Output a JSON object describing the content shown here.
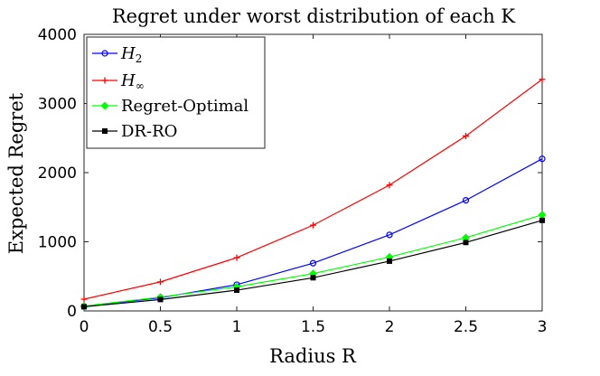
{
  "chart_data": {
    "type": "line",
    "title": "Regret under worst distribution of each K",
    "xlabel": "Radius R",
    "ylabel": "Expected Regret",
    "xlim": [
      0,
      3
    ],
    "ylim": [
      0,
      4000
    ],
    "xticks": [
      0,
      0.5,
      1,
      1.5,
      2,
      2.5,
      3
    ],
    "xtick_labels": [
      "0",
      "0.5",
      "1",
      "1.5",
      "2",
      "2.5",
      "3"
    ],
    "yticks": [
      0,
      1000,
      2000,
      3000,
      4000
    ],
    "ytick_labels": [
      "0",
      "1000",
      "2000",
      "3000",
      "4000"
    ],
    "grid": false,
    "legend_position": "top-left",
    "x": [
      0,
      0.5,
      1,
      1.5,
      2,
      2.5,
      3
    ],
    "series": [
      {
        "name": "H_2",
        "legend_main": "H",
        "legend_sub": "2",
        "color": "#0000ff",
        "marker": "circle",
        "values": [
          65,
          190,
          380,
          690,
          1100,
          1600,
          2200
        ]
      },
      {
        "name": "H_inf",
        "legend_main": "H",
        "legend_sub": "∞",
        "color": "#ff0000",
        "marker": "plus",
        "values": [
          170,
          420,
          770,
          1240,
          1820,
          2530,
          3350
        ]
      },
      {
        "name": "Regret-Optimal",
        "legend_main": "Regret-Optimal",
        "legend_sub": "",
        "color": "#00ff00",
        "marker": "diamond",
        "values": [
          70,
          200,
          350,
          540,
          780,
          1060,
          1390
        ]
      },
      {
        "name": "DR-RO",
        "legend_main": "DR-RO",
        "legend_sub": "",
        "color": "#000000",
        "marker": "square",
        "values": [
          60,
          165,
          300,
          480,
          720,
          990,
          1310
        ]
      }
    ]
  }
}
